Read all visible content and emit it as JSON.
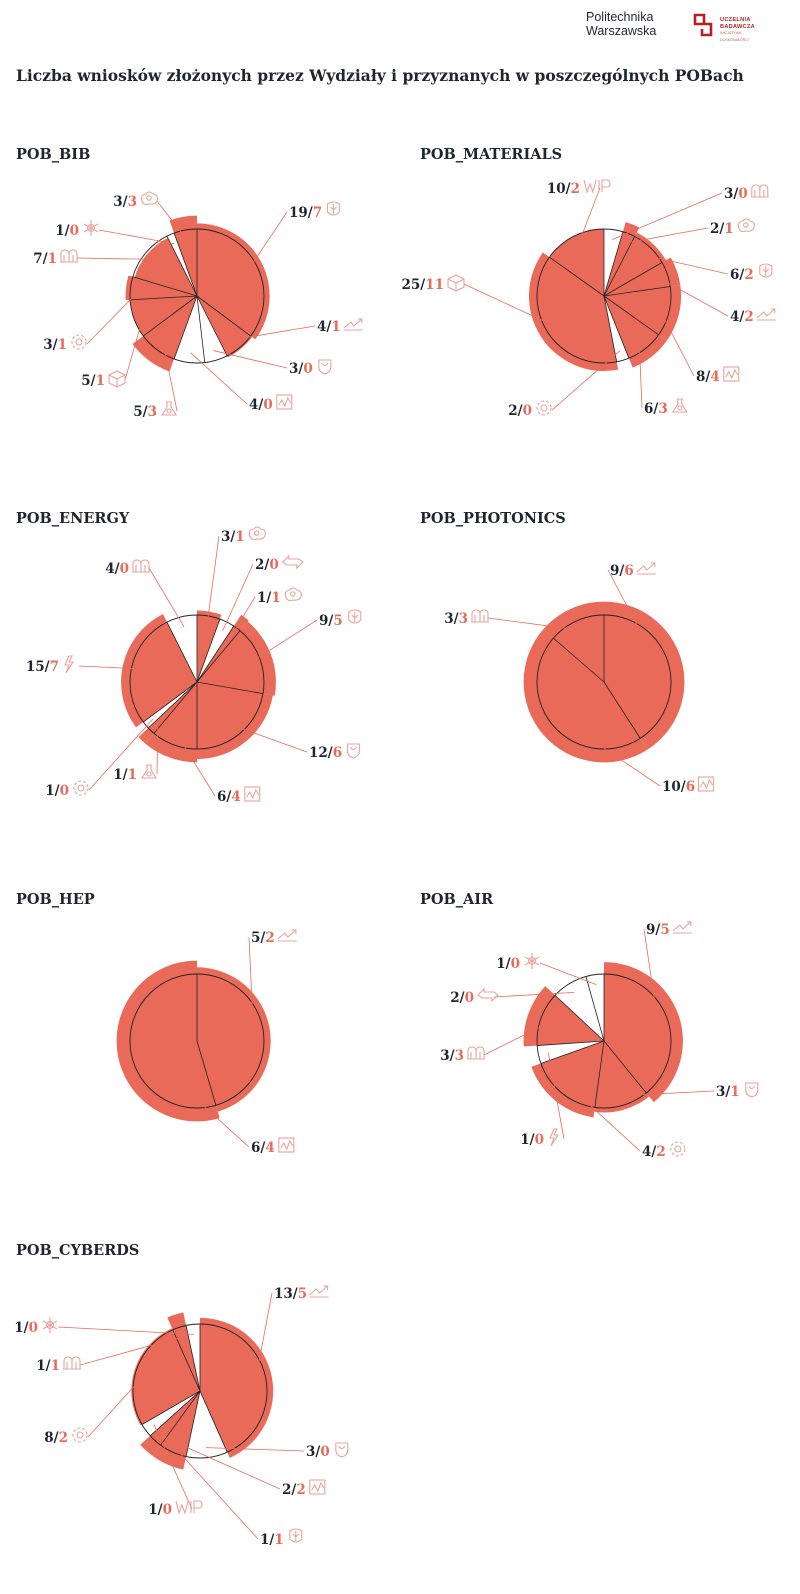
{
  "header": {
    "logo_line1": "Politechnika",
    "logo_line2": "Warszawska",
    "badge_line1": "UCZELNIA",
    "badge_line2": "BADAWCZA",
    "badge_line3": "INICJATYWA DOSKONAŁOŚCI",
    "title": "Liczba wniosków złożonych  przez Wydziały i przyznanych w poszczególnych POBach"
  },
  "colors": {
    "accent": "#ea6a5a",
    "text": "#1f2630",
    "outline": "#222222",
    "icon": "#e8a39a"
  },
  "chart_data": [
    {
      "type": "pie",
      "title": "POB_BIB",
      "slices": [
        {
          "submitted": 19,
          "awarded": 7,
          "icon": "tree-crest-icon"
        },
        {
          "submitted": 4,
          "awarded": 1,
          "icon": "zigzag-arrow-icon"
        },
        {
          "submitted": 3,
          "awarded": 0,
          "icon": "shield-crest-icon"
        },
        {
          "submitted": 4,
          "awarded": 0,
          "icon": "chart-square-icon"
        },
        {
          "submitted": 5,
          "awarded": 3,
          "icon": "flask-icon"
        },
        {
          "submitted": 5,
          "awarded": 1,
          "icon": "cube-icon"
        },
        {
          "submitted": 3,
          "awarded": 1,
          "icon": "gear-flower-icon"
        },
        {
          "submitted": 7,
          "awarded": 1,
          "icon": "m-pillars-icon"
        },
        {
          "submitted": 1,
          "awarded": 0,
          "icon": "snowflake-icon"
        },
        {
          "submitted": 3,
          "awarded": 3,
          "icon": "cloud-drop-icon"
        }
      ]
    },
    {
      "type": "pie",
      "title": "POB_MATERIALS",
      "slices": [
        {
          "submitted": 3,
          "awarded": 0,
          "icon": "m-pillars-icon"
        },
        {
          "submitted": 2,
          "awarded": 1,
          "icon": "cloud-drop-icon"
        },
        {
          "submitted": 6,
          "awarded": 2,
          "icon": "tree-crest-icon"
        },
        {
          "submitted": 4,
          "awarded": 2,
          "icon": "zigzag-arrow-icon"
        },
        {
          "submitted": 8,
          "awarded": 4,
          "icon": "chart-square-icon"
        },
        {
          "submitted": 6,
          "awarded": 3,
          "icon": "flask-icon"
        },
        {
          "submitted": 2,
          "awarded": 0,
          "icon": "gear-flower-icon"
        },
        {
          "submitted": 25,
          "awarded": 11,
          "icon": "cube-icon"
        },
        {
          "submitted": 10,
          "awarded": 2,
          "icon": "wip-letters-icon"
        }
      ]
    },
    {
      "type": "pie",
      "title": "POB_ENERGY",
      "slices": [
        {
          "submitted": 3,
          "awarded": 1,
          "icon": "cloud-drop-icon"
        },
        {
          "submitted": 2,
          "awarded": 0,
          "icon": "double-arrow-icon"
        },
        {
          "submitted": 1,
          "awarded": 1,
          "icon": "cloud-drop-icon"
        },
        {
          "submitted": 9,
          "awarded": 5,
          "icon": "tree-crest-icon"
        },
        {
          "submitted": 12,
          "awarded": 6,
          "icon": "shield-crest-icon"
        },
        {
          "submitted": 6,
          "awarded": 4,
          "icon": "chart-square-icon"
        },
        {
          "submitted": 1,
          "awarded": 1,
          "icon": "flask-icon"
        },
        {
          "submitted": 1,
          "awarded": 0,
          "icon": "gear-flower-icon"
        },
        {
          "submitted": 15,
          "awarded": 7,
          "icon": "lightning-icon"
        },
        {
          "submitted": 4,
          "awarded": 0,
          "icon": "m-pillars-icon"
        }
      ]
    },
    {
      "type": "pie",
      "title": "POB_PHOTONICS",
      "slices": [
        {
          "submitted": 9,
          "awarded": 6,
          "icon": "zigzag-arrow-icon"
        },
        {
          "submitted": 10,
          "awarded": 6,
          "icon": "chart-square-icon"
        },
        {
          "submitted": 3,
          "awarded": 3,
          "icon": "m-pillars-icon"
        }
      ]
    },
    {
      "type": "pie",
      "title": "POB_HEP",
      "slices": [
        {
          "submitted": 5,
          "awarded": 2,
          "icon": "zigzag-arrow-icon"
        },
        {
          "submitted": 6,
          "awarded": 4,
          "icon": "chart-square-icon"
        }
      ]
    },
    {
      "type": "pie",
      "title": "POB_AIR",
      "slices": [
        {
          "submitted": 9,
          "awarded": 5,
          "icon": "zigzag-arrow-icon"
        },
        {
          "submitted": 3,
          "awarded": 1,
          "icon": "shield-crest-icon"
        },
        {
          "submitted": 4,
          "awarded": 2,
          "icon": "gear-flower-icon"
        },
        {
          "submitted": 1,
          "awarded": 0,
          "icon": "lightning-icon"
        },
        {
          "submitted": 3,
          "awarded": 3,
          "icon": "m-pillars-icon"
        },
        {
          "submitted": 2,
          "awarded": 0,
          "icon": "double-arrow-icon"
        },
        {
          "submitted": 1,
          "awarded": 0,
          "icon": "snowflake-icon"
        }
      ]
    },
    {
      "type": "pie",
      "title": "POB_CYBERDS",
      "slices": [
        {
          "submitted": 13,
          "awarded": 5,
          "icon": "zigzag-arrow-icon"
        },
        {
          "submitted": 3,
          "awarded": 0,
          "icon": "shield-crest-icon"
        },
        {
          "submitted": 2,
          "awarded": 2,
          "icon": "chart-square-icon"
        },
        {
          "submitted": 1,
          "awarded": 1,
          "icon": "tree-crest-icon"
        },
        {
          "submitted": 1,
          "awarded": 0,
          "icon": "wip-letters-icon"
        },
        {
          "submitted": 8,
          "awarded": 2,
          "icon": "gear-flower-icon"
        },
        {
          "submitted": 1,
          "awarded": 1,
          "icon": "m-pillars-icon"
        },
        {
          "submitted": 1,
          "awarded": 0,
          "icon": "snowflake-icon"
        }
      ]
    }
  ]
}
